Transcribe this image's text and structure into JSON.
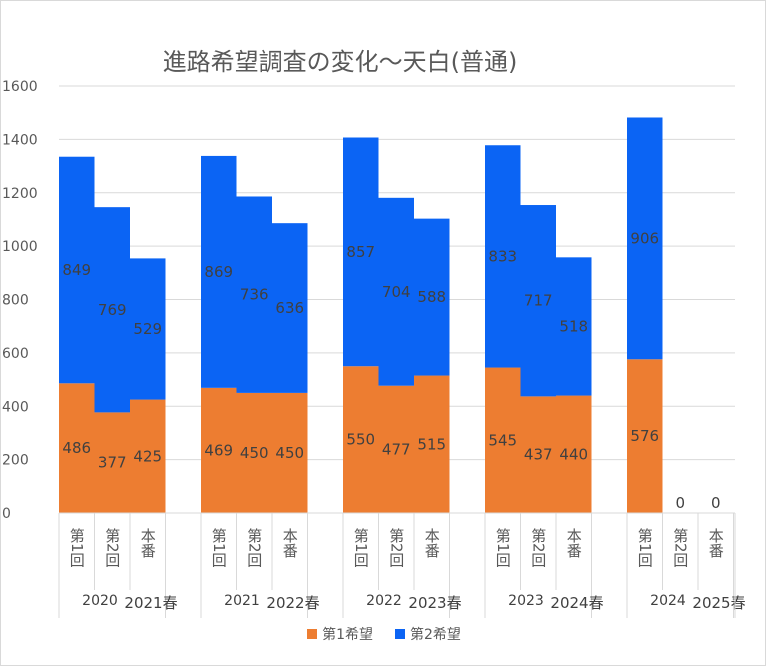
{
  "chart_data": {
    "type": "bar",
    "stacked": true,
    "title": "進路希望調査の変化〜天白(普通)",
    "ylim": [
      0,
      1600
    ],
    "yticks": [
      0,
      200,
      400,
      600,
      800,
      1000,
      1200,
      1400,
      1600
    ],
    "ytick_labels": [
      "0",
      "200",
      "400",
      "600",
      "800",
      "1000",
      "1200",
      "1400",
      "1600"
    ],
    "grid": true,
    "legend_position": "bottom",
    "groups": [
      {
        "year": "2020",
        "season": "2021春",
        "categories": [
          "第1回",
          "第2回",
          "本番"
        ]
      },
      {
        "year": "2021",
        "season": "2022春",
        "categories": [
          "第1回",
          "第2回",
          "本番"
        ]
      },
      {
        "year": "2022",
        "season": "2023春",
        "categories": [
          "第1回",
          "第2回",
          "本番"
        ]
      },
      {
        "year": "2023",
        "season": "2024春",
        "categories": [
          "第1回",
          "第2回",
          "本番"
        ]
      },
      {
        "year": "2024",
        "season": "2025春",
        "categories": [
          "第1回",
          "第2回",
          "本番"
        ]
      }
    ],
    "series": [
      {
        "name": "第1希望",
        "color": "#ED7D31",
        "values": [
          486,
          377,
          425,
          469,
          450,
          450,
          550,
          477,
          515,
          545,
          437,
          440,
          576,
          0,
          0
        ],
        "labels": [
          "486",
          "377",
          "425",
          "469",
          "450",
          "450",
          "550",
          "477",
          "515",
          "545",
          "437",
          "440",
          "576",
          "0",
          "0"
        ]
      },
      {
        "name": "第2希望",
        "color": "#0B64F4",
        "values": [
          849,
          769,
          529,
          869,
          736,
          636,
          857,
          704,
          588,
          833,
          717,
          518,
          906,
          null,
          null
        ],
        "labels": [
          "849",
          "769",
          "529",
          "869",
          "736",
          "636",
          "857",
          "704",
          "588",
          "833",
          "717",
          "518",
          "906",
          "",
          ""
        ]
      }
    ]
  }
}
